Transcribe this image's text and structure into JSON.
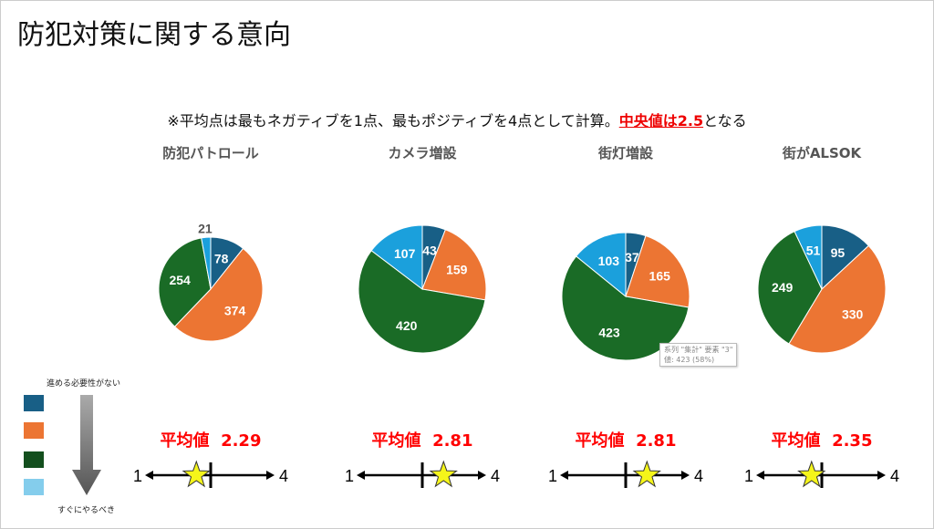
{
  "title": "防犯対策に関する意向",
  "note": {
    "prefix": "※平均点は最もネガティブを1点、最もポジティブを4点として計算。",
    "highlight": "中央値は2.5",
    "suffix": "となる"
  },
  "colors": [
    "#185f86",
    "#ec7533",
    "#1a6b26",
    "#1ba0dc"
  ],
  "charts": [
    {
      "title": "防犯パトロール",
      "values": [
        78,
        374,
        254,
        21
      ],
      "mean_label": "平均値",
      "mean": 2.29,
      "mean_text": "2.29"
    },
    {
      "title": "カメラ増設",
      "values": [
        43,
        159,
        420,
        107
      ],
      "mean_label": "平均値",
      "mean": 2.81,
      "mean_text": "2.81"
    },
    {
      "title": "街灯増設",
      "values": [
        37,
        165,
        423,
        103
      ],
      "mean_label": "平均値",
      "mean": 2.81,
      "mean_text": "2.81"
    },
    {
      "title": "街がALSOK",
      "values": [
        95,
        330,
        249,
        51
      ],
      "mean_label": "平均値",
      "mean": 2.35,
      "mean_text": "2.35"
    }
  ],
  "scale": {
    "min_label": "1",
    "max_label": "4",
    "min": 1,
    "max": 4,
    "median": 2.5
  },
  "legend": {
    "top_label": "進める必要性がない",
    "bottom_label": "すぐにやるべき",
    "colors": [
      "#185f86",
      "#ec7533",
      "#134f1e",
      "#84cdec"
    ]
  },
  "tooltip": {
    "line1": "系列 \"集計\" 要素 \"3\"",
    "line2": "値: 423 (58%)"
  }
}
